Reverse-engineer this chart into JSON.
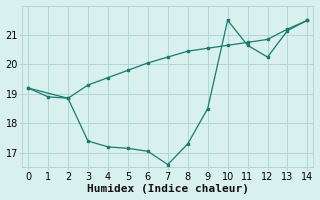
{
  "line1_x": [
    0,
    1,
    2,
    3,
    4,
    5,
    6,
    7,
    8,
    9,
    10,
    11,
    12,
    13,
    14
  ],
  "line1_y": [
    19.2,
    18.9,
    18.85,
    19.3,
    19.55,
    19.8,
    20.05,
    20.25,
    20.45,
    20.55,
    20.65,
    20.75,
    20.85,
    21.2,
    21.5
  ],
  "line2_x": [
    0,
    2,
    3,
    4,
    5,
    6,
    7,
    8,
    9,
    10,
    11,
    12,
    13,
    14
  ],
  "line2_y": [
    19.2,
    18.85,
    17.4,
    17.2,
    17.15,
    17.05,
    16.6,
    17.3,
    18.5,
    21.5,
    20.65,
    20.25,
    21.15,
    21.5
  ],
  "color": "#1a7a6e",
  "bg_color": "#d8f0ee",
  "grid_color": "#b0d8d4",
  "xlabel": "Humidex (Indice chaleur)",
  "ylim": [
    16.5,
    22.0
  ],
  "xlim": [
    -0.3,
    14.3
  ],
  "yticks": [
    17,
    18,
    19,
    20,
    21
  ],
  "xticks": [
    0,
    1,
    2,
    3,
    4,
    5,
    6,
    7,
    8,
    9,
    10,
    11,
    12,
    13,
    14
  ],
  "font_size": 7,
  "xlabel_fontsize": 8
}
